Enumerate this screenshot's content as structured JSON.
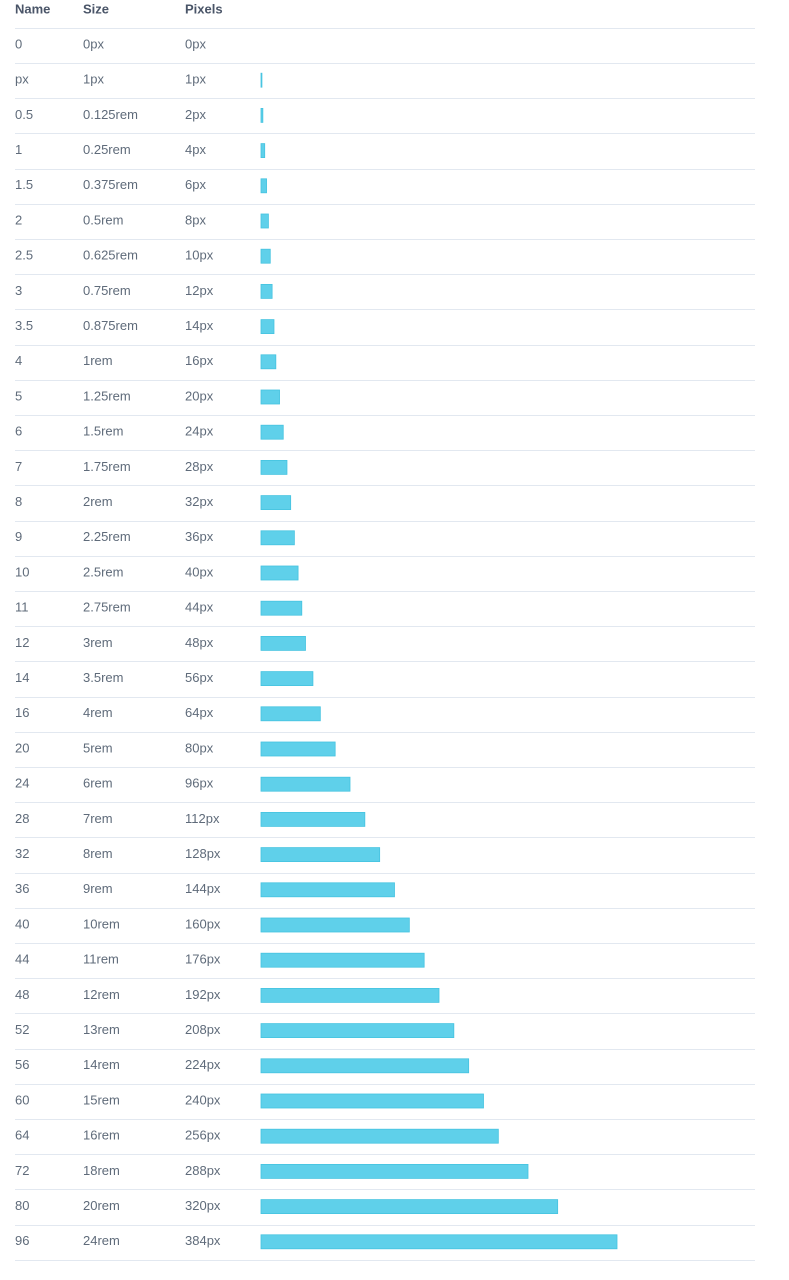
{
  "table": {
    "header": [
      "Name",
      "Size",
      "Pixels"
    ],
    "rows": [
      [
        "0",
        "0px",
        "0px"
      ],
      [
        "px",
        "1px",
        "1px"
      ],
      [
        "0.5",
        "0.125rem",
        "2px"
      ],
      [
        "1",
        "0.25rem",
        "4px"
      ],
      [
        "1.5",
        "0.375rem",
        "6px"
      ],
      [
        "2",
        "0.5rem",
        "8px"
      ],
      [
        "2.5",
        "0.625rem",
        "10px"
      ],
      [
        "3",
        "0.75rem",
        "12px"
      ],
      [
        "3.5",
        "0.875rem",
        "14px"
      ],
      [
        "4",
        "1rem",
        "16px"
      ],
      [
        "5",
        "1.25rem",
        "20px"
      ],
      [
        "6",
        "1.5rem",
        "24px"
      ],
      [
        "7",
        "1.75rem",
        "28px"
      ],
      [
        "8",
        "2rem",
        "32px"
      ],
      [
        "9",
        "2.25rem",
        "36px"
      ],
      [
        "10",
        "2.5rem",
        "40px"
      ],
      [
        "11",
        "2.75rem",
        "44px"
      ],
      [
        "12",
        "3rem",
        "48px"
      ],
      [
        "14",
        "3.5rem",
        "56px"
      ],
      [
        "16",
        "4rem",
        "64px"
      ],
      [
        "20",
        "5rem",
        "80px"
      ],
      [
        "24",
        "6rem",
        "96px"
      ],
      [
        "28",
        "7rem",
        "112px"
      ],
      [
        "32",
        "8rem",
        "128px"
      ],
      [
        "36",
        "9rem",
        "144px"
      ],
      [
        "40",
        "10rem",
        "160px"
      ],
      [
        "44",
        "11rem",
        "176px"
      ],
      [
        "48",
        "12rem",
        "192px"
      ],
      [
        "52",
        "13rem",
        "208px"
      ],
      [
        "56",
        "14rem",
        "224px"
      ],
      [
        "60",
        "15rem",
        "240px"
      ],
      [
        "64",
        "16rem",
        "256px"
      ],
      [
        "72",
        "18rem",
        "288px"
      ],
      [
        "80",
        "20rem",
        "320px"
      ],
      [
        "96",
        "24rem",
        "384px"
      ]
    ]
  }
}
